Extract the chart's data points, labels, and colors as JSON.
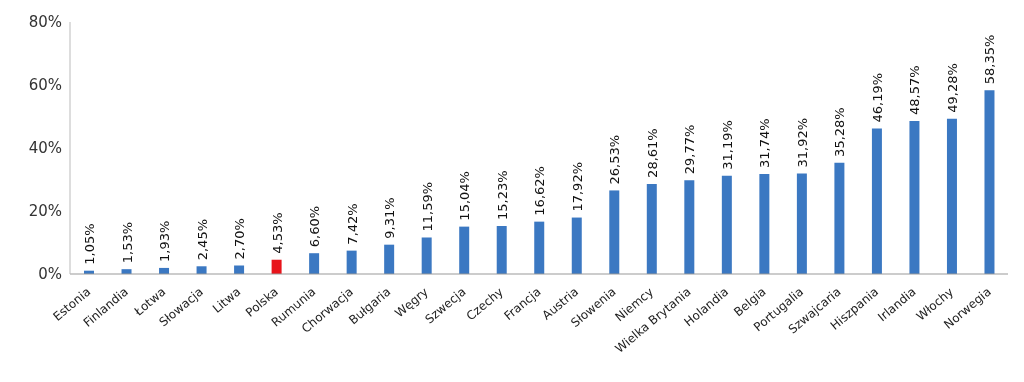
{
  "chart_data": {
    "type": "bar",
    "categories": [
      "Estonia",
      "Finlandia",
      "Łotwa",
      "Słowacja",
      "Litwa",
      "Polska",
      "Rumunia",
      "Chorwacja",
      "Bułgaria",
      "Węgry",
      "Szwecja",
      "Czechy",
      "Francja",
      "Austria",
      "Słowenia",
      "Niemcy",
      "Wielka Brytania",
      "Holandia",
      "Belgia",
      "Portugalia",
      "Szwajcaria",
      "Hiszpania",
      "Irlandia",
      "Włochy",
      "Norwegia"
    ],
    "values": [
      1.05,
      1.53,
      1.93,
      2.45,
      2.7,
      4.53,
      6.6,
      7.42,
      9.31,
      11.59,
      15.04,
      15.23,
      16.62,
      17.92,
      26.53,
      28.61,
      29.77,
      31.19,
      31.74,
      31.92,
      35.28,
      46.19,
      48.57,
      49.28,
      58.35
    ],
    "colors": [
      "#3b78c2",
      "#3b78c2",
      "#3b78c2",
      "#3b78c2",
      "#3b78c2",
      "#e8141b",
      "#3b78c2",
      "#3b78c2",
      "#3b78c2",
      "#3b78c2",
      "#3b78c2",
      "#3b78c2",
      "#3b78c2",
      "#3b78c2",
      "#3b78c2",
      "#3b78c2",
      "#3b78c2",
      "#3b78c2",
      "#3b78c2",
      "#3b78c2",
      "#3b78c2",
      "#3b78c2",
      "#3b78c2",
      "#3b78c2",
      "#3b78c2"
    ],
    "value_labels": [
      "1,05%",
      "1,53%",
      "1,93%",
      "2,45%",
      "2,70%",
      "4,53%",
      "6,60%",
      "7,42%",
      "9,31%",
      "11,59%",
      "15,04%",
      "15,23%",
      "16,62%",
      "17,92%",
      "26,53%",
      "28,61%",
      "29,77%",
      "31,19%",
      "31,74%",
      "31,92%",
      "35,28%",
      "46,19%",
      "48,57%",
      "49,28%",
      "58,35%"
    ],
    "ylim": [
      0,
      80
    ],
    "yticks": [
      {
        "value": 0,
        "label": "0%"
      },
      {
        "value": 20,
        "label": "20%"
      },
      {
        "value": 40,
        "label": "40%"
      },
      {
        "value": 60,
        "label": "60%"
      },
      {
        "value": 80,
        "label": "80%"
      }
    ],
    "grid": false
  }
}
